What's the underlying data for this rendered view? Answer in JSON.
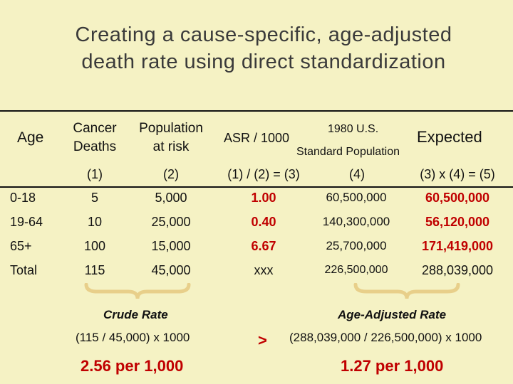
{
  "title": {
    "line1": "Creating a cause-specific, age-adjusted",
    "line2": "death rate using direct standardization"
  },
  "headers": {
    "age": "Age",
    "cancer_deaths_1": "Cancer",
    "cancer_deaths_2": "Deaths",
    "population_1": "Population",
    "population_2": "at risk",
    "asr": "ASR / 1000",
    "std_top": "1980 U.S.",
    "std_bottom": "Standard Population",
    "expected": "Expected"
  },
  "formulas": {
    "col1": "(1)",
    "col2": "(2)",
    "col3": "(1) / (2) = (3)",
    "col4": "(4)",
    "col5": "(3) x (4) = (5)"
  },
  "rows": [
    {
      "age": "0-18",
      "deaths": "5",
      "population": "5,000",
      "asr": "1.00",
      "std_pop": "60,500,000",
      "expected": "60,500,000"
    },
    {
      "age": "19-64",
      "deaths": "10",
      "population": "25,000",
      "asr": "0.40",
      "std_pop": "140,300,000",
      "expected": "56,120,000"
    },
    {
      "age": "65+",
      "deaths": "100",
      "population": "15,000",
      "asr": "6.67",
      "std_pop": "25,700,000",
      "expected": "171,419,000"
    },
    {
      "age": "Total",
      "deaths": "115",
      "population": "45,000",
      "asr": "xxx",
      "std_pop": "226,500,000",
      "expected": "288,039,000"
    }
  ],
  "crude": {
    "label": "Crude Rate",
    "formula": "(115 / 45,000) x 1000",
    "result": "2.56 per 1,000"
  },
  "comparison": ">",
  "adjusted": {
    "label": "Age-Adjusted Rate",
    "formula": "(288,039,000 / 226,500,000) x 1000",
    "result": "1.27 per 1,000"
  },
  "colors": {
    "background": "#f5f2c4",
    "accent_red": "#c00000",
    "brace": "#e8cf8a"
  }
}
